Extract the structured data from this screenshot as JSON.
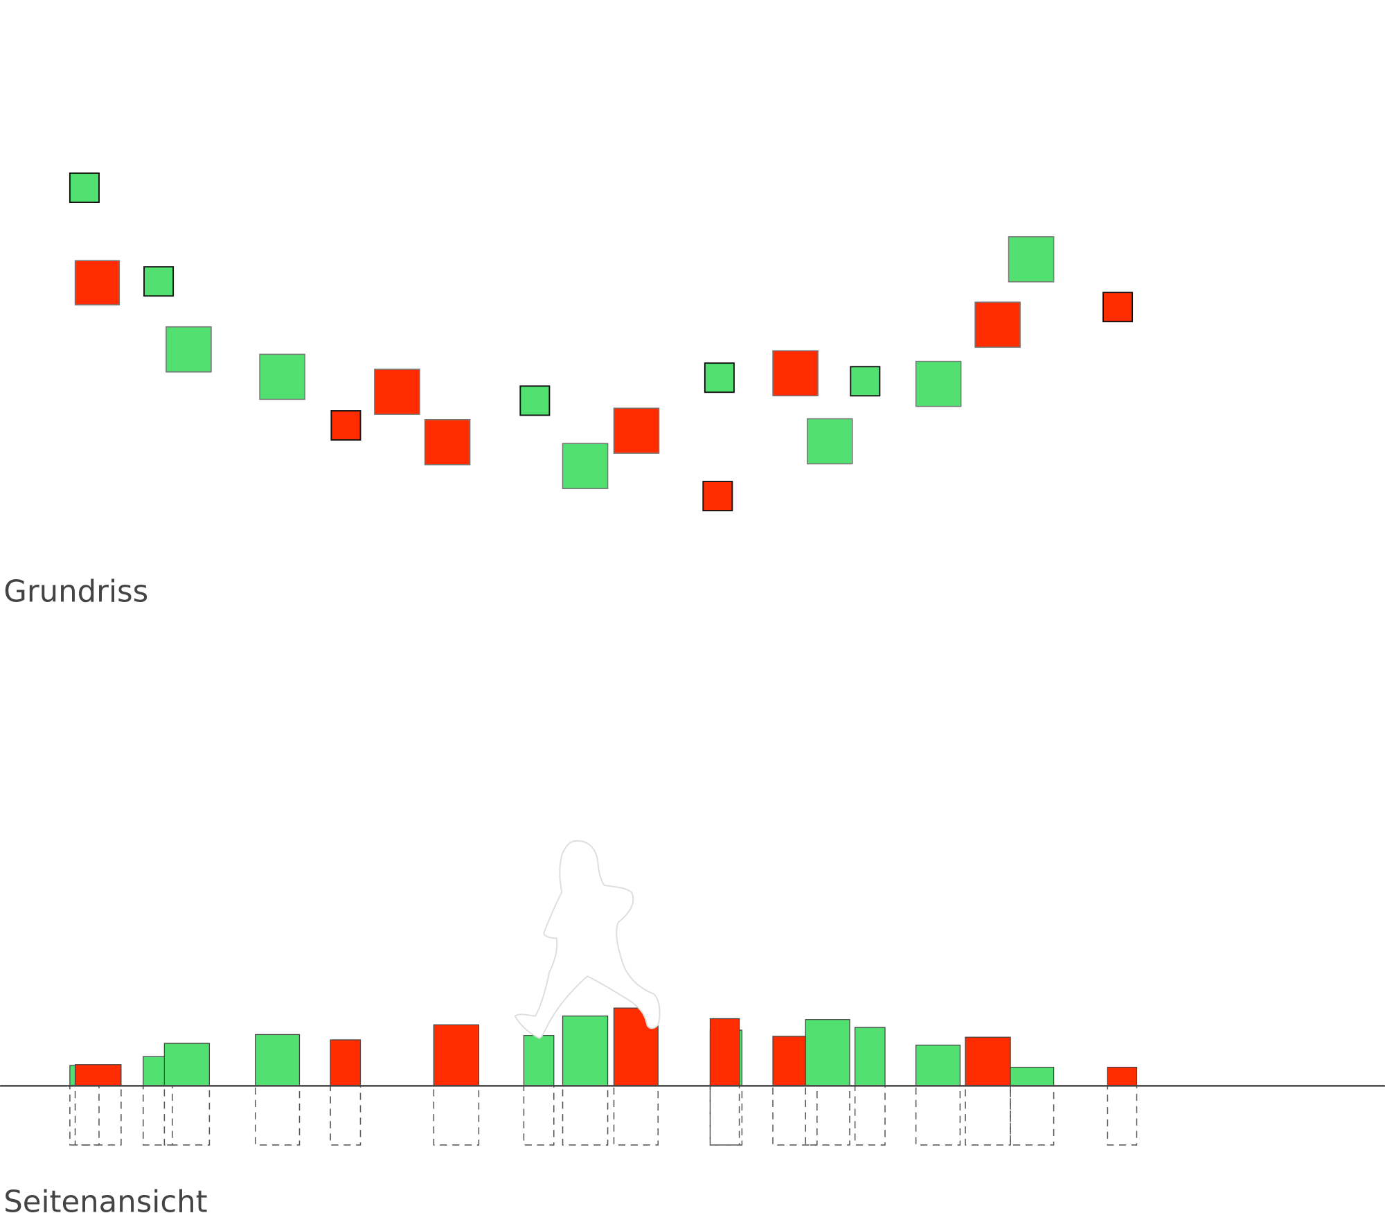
{
  "labels": {
    "plan": "Grundriss",
    "side": "Seitenansicht"
  }
}
